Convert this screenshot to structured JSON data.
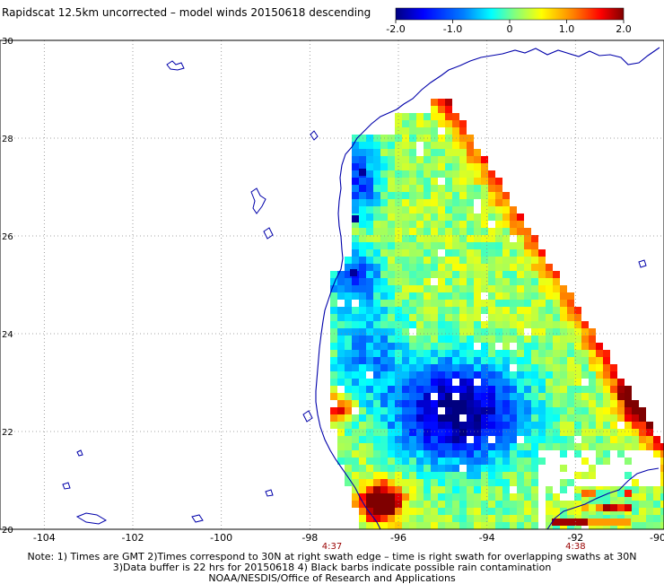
{
  "title": "Rapidscat 12.5km uncorrected – model winds 20150618 descending",
  "colorbar": {
    "ticks": [
      "-2.0",
      "-1.0",
      "0",
      "1.0",
      "2.0"
    ],
    "tick_values": [
      -2.0,
      -1.0,
      0,
      1.0,
      2.0
    ],
    "min": -2.0,
    "max": 2.0,
    "colors": [
      "#00007f",
      "#0000ff",
      "#0080ff",
      "#00ffff",
      "#80ff80",
      "#ffff00",
      "#ff8000",
      "#ff0000",
      "#7f0000"
    ]
  },
  "axes": {
    "lon_ticks": [
      "-104",
      "-102",
      "-100",
      "-98",
      "-96",
      "-94",
      "-92",
      "-90"
    ],
    "lon_values": [
      -104,
      -102,
      -100,
      -98,
      -96,
      -94,
      -92,
      -90
    ],
    "lat_ticks": [
      "30",
      "28",
      "26",
      "24",
      "22",
      "20"
    ],
    "lat_values": [
      30,
      28,
      26,
      24,
      22,
      20
    ],
    "lon_range": [
      -105,
      -90
    ],
    "lat_range": [
      20,
      30
    ],
    "grid": "dotted"
  },
  "time_labels": [
    {
      "text": "4:37",
      "lon": -97.5
    },
    {
      "text": "4:38",
      "lon": -92
    }
  ],
  "notes": [
    "Note: 1) Times are GMT 2)Times correspond to 30N at right swath edge – time is right swath for overlapping swaths at 30N",
    "3)Data buffer is 22 hrs for 20150618 4) Black barbs indicate possible rain contamination",
    "NOAA/NESDIS/Office of Research and Applications"
  ],
  "style": {
    "background": "#ffffff",
    "coast_color": "#0000aa",
    "grid_color": "#888888",
    "time_label_color": "#990000",
    "nodata_color": "#ffffff"
  }
}
